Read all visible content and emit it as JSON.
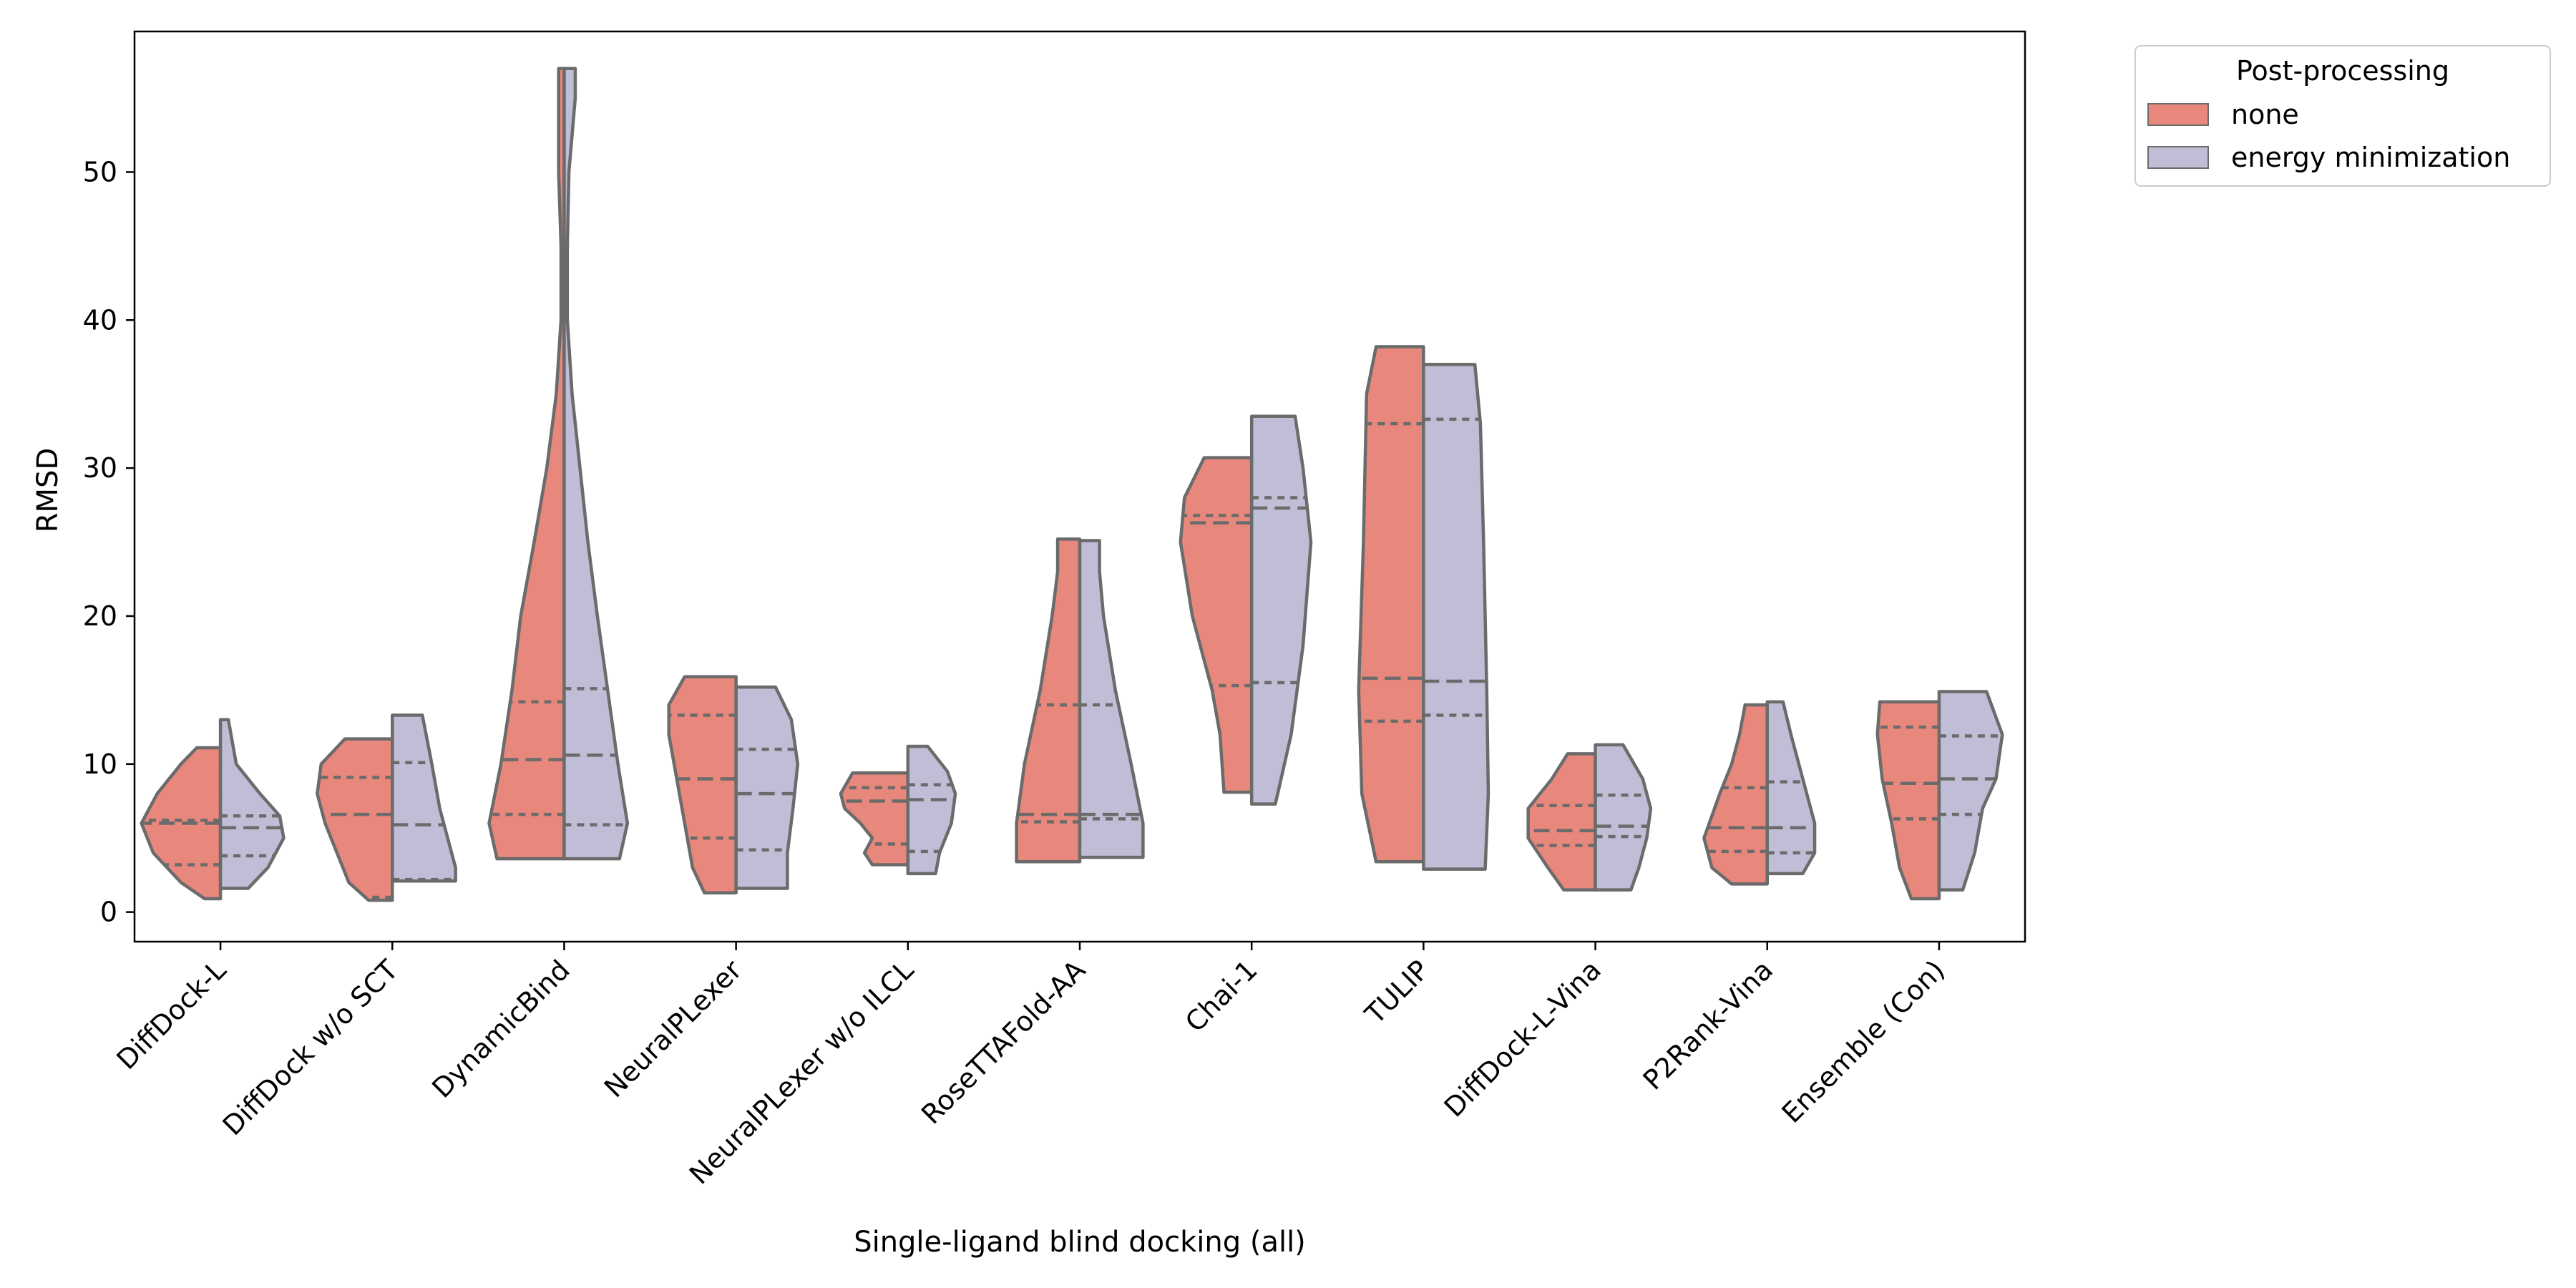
{
  "chart_data": {
    "type": "violin",
    "split": true,
    "inner": "quartile",
    "title": "",
    "xlabel": "Single-ligand blind docking (all)",
    "ylabel": "RMSD",
    "ylim": [
      -2,
      59.5
    ],
    "yticks": [
      0,
      10,
      20,
      30,
      40,
      50
    ],
    "grid": false,
    "colors": {
      "none": "#e8877c",
      "energy minimization": "#c0bdd6",
      "edge": "#6b6b6b"
    },
    "legend": {
      "title": "Post-processing",
      "placement": "outside-top-right",
      "entries": [
        "none",
        "energy minimization"
      ]
    },
    "categories": [
      "DiffDock-L",
      "DiffDock w/o SCT",
      "DynamicBind",
      "NeuralPLexer",
      "NeuralPLexer w/o ILCL",
      "RoseTTAFold-AA",
      "Chai-1",
      "TULIP",
      "DiffDock-L-Vina",
      "P2Rank-Vina",
      "Ensemble (Con)"
    ],
    "series": [
      {
        "name": "none",
        "violins": [
          {
            "min": 0.9,
            "max": 11.1,
            "q1": 3.2,
            "median": 6.0,
            "q3": 6.2,
            "profile": [
              [
                0.9,
                0.2
              ],
              [
                2,
                0.5
              ],
              [
                4,
                0.85
              ],
              [
                6,
                1.0
              ],
              [
                8,
                0.8
              ],
              [
                10,
                0.5
              ],
              [
                11.1,
                0.3
              ]
            ]
          },
          {
            "min": 0.8,
            "max": 11.7,
            "q1": 1.0,
            "median": 6.6,
            "q3": 9.1,
            "profile": [
              [
                0.8,
                0.3
              ],
              [
                2,
                0.55
              ],
              [
                4,
                0.7
              ],
              [
                6,
                0.85
              ],
              [
                8,
                0.95
              ],
              [
                10,
                0.9
              ],
              [
                11.7,
                0.6
              ]
            ]
          },
          {
            "min": 3.6,
            "max": 57.0,
            "q1": 6.6,
            "median": 10.3,
            "q3": 14.2,
            "profile": [
              [
                3.6,
                0.85
              ],
              [
                6,
                0.95
              ],
              [
                10,
                0.8
              ],
              [
                15,
                0.66
              ],
              [
                20,
                0.55
              ],
              [
                25,
                0.38
              ],
              [
                30,
                0.22
              ],
              [
                35,
                0.1
              ],
              [
                40,
                0.04
              ],
              [
                45,
                0.04
              ],
              [
                50,
                0.07
              ],
              [
                55,
                0.07
              ],
              [
                57,
                0.07
              ]
            ]
          },
          {
            "min": 1.3,
            "max": 15.9,
            "q1": 5.0,
            "median": 9.0,
            "q3": 13.3,
            "profile": [
              [
                1.3,
                0.4
              ],
              [
                3,
                0.55
              ],
              [
                6,
                0.65
              ],
              [
                9,
                0.75
              ],
              [
                12,
                0.85
              ],
              [
                14,
                0.85
              ],
              [
                15.9,
                0.65
              ]
            ]
          },
          {
            "min": 3.2,
            "max": 9.4,
            "q1": 4.6,
            "median": 7.5,
            "q3": 8.4,
            "profile": [
              [
                3.2,
                0.45
              ],
              [
                4,
                0.55
              ],
              [
                5,
                0.45
              ],
              [
                6,
                0.6
              ],
              [
                7,
                0.8
              ],
              [
                8,
                0.85
              ],
              [
                9.4,
                0.7
              ]
            ]
          },
          {
            "min": 3.4,
            "max": 25.2,
            "q1": 6.1,
            "median": 6.6,
            "q3": 14.0,
            "profile": [
              [
                3.4,
                0.8
              ],
              [
                6,
                0.8
              ],
              [
                10,
                0.7
              ],
              [
                15,
                0.5
              ],
              [
                20,
                0.35
              ],
              [
                23,
                0.28
              ],
              [
                25.2,
                0.28
              ]
            ]
          },
          {
            "min": 8.1,
            "max": 30.7,
            "q1": 15.3,
            "median": 26.3,
            "q3": 26.8,
            "profile": [
              [
                8.1,
                0.35
              ],
              [
                12,
                0.4
              ],
              [
                15,
                0.5
              ],
              [
                20,
                0.75
              ],
              [
                25,
                0.9
              ],
              [
                28,
                0.85
              ],
              [
                30.7,
                0.6
              ]
            ]
          },
          {
            "min": 3.4,
            "max": 38.2,
            "q1": 12.9,
            "median": 15.8,
            "q3": 33.0,
            "profile": [
              [
                3.4,
                0.6
              ],
              [
                8,
                0.78
              ],
              [
                15,
                0.82
              ],
              [
                25,
                0.76
              ],
              [
                35,
                0.72
              ],
              [
                38.2,
                0.6
              ]
            ]
          },
          {
            "min": 1.5,
            "max": 10.7,
            "q1": 4.5,
            "median": 5.5,
            "q3": 7.2,
            "profile": [
              [
                1.5,
                0.4
              ],
              [
                3,
                0.6
              ],
              [
                5,
                0.85
              ],
              [
                7,
                0.85
              ],
              [
                9,
                0.55
              ],
              [
                10.7,
                0.35
              ]
            ]
          },
          {
            "min": 1.9,
            "max": 14.0,
            "q1": 4.1,
            "median": 5.7,
            "q3": 8.4,
            "profile": [
              [
                1.9,
                0.45
              ],
              [
                3,
                0.7
              ],
              [
                5,
                0.8
              ],
              [
                8,
                0.6
              ],
              [
                10,
                0.45
              ],
              [
                12,
                0.35
              ],
              [
                14,
                0.28
              ]
            ]
          },
          {
            "min": 0.9,
            "max": 14.2,
            "q1": 6.3,
            "median": 8.7,
            "q3": 12.5,
            "profile": [
              [
                0.9,
                0.35
              ],
              [
                3,
                0.5
              ],
              [
                6,
                0.6
              ],
              [
                9,
                0.72
              ],
              [
                12,
                0.78
              ],
              [
                14.2,
                0.75
              ]
            ]
          }
        ]
      },
      {
        "name": "energy minimization",
        "violins": [
          {
            "min": 1.6,
            "max": 13.0,
            "q1": 3.8,
            "median": 5.7,
            "q3": 6.5,
            "profile": [
              [
                1.6,
                0.35
              ],
              [
                3,
                0.6
              ],
              [
                5,
                0.8
              ],
              [
                6.5,
                0.75
              ],
              [
                8,
                0.5
              ],
              [
                10,
                0.2
              ],
              [
                13,
                0.1
              ]
            ]
          },
          {
            "min": 2.1,
            "max": 13.3,
            "q1": 2.2,
            "median": 5.9,
            "q3": 10.1,
            "profile": [
              [
                2.1,
                0.8
              ],
              [
                3,
                0.8
              ],
              [
                5,
                0.7
              ],
              [
                7,
                0.6
              ],
              [
                10,
                0.5
              ],
              [
                13.3,
                0.38
              ]
            ]
          },
          {
            "min": 3.6,
            "max": 57.0,
            "q1": 5.9,
            "median": 10.6,
            "q3": 15.1,
            "profile": [
              [
                3.6,
                0.7
              ],
              [
                6,
                0.8
              ],
              [
                10,
                0.68
              ],
              [
                15,
                0.55
              ],
              [
                20,
                0.42
              ],
              [
                25,
                0.3
              ],
              [
                30,
                0.2
              ],
              [
                35,
                0.1
              ],
              [
                40,
                0.04
              ],
              [
                45,
                0.04
              ],
              [
                50,
                0.06
              ],
              [
                55,
                0.14
              ],
              [
                57,
                0.14
              ]
            ]
          },
          {
            "min": 1.6,
            "max": 15.2,
            "q1": 4.2,
            "median": 8.0,
            "q3": 11.0,
            "profile": [
              [
                1.6,
                0.65
              ],
              [
                4,
                0.65
              ],
              [
                7,
                0.72
              ],
              [
                10,
                0.78
              ],
              [
                13,
                0.7
              ],
              [
                15.2,
                0.5
              ]
            ]
          },
          {
            "min": 2.6,
            "max": 11.2,
            "q1": 4.1,
            "median": 7.6,
            "q3": 8.6,
            "profile": [
              [
                2.6,
                0.35
              ],
              [
                4,
                0.4
              ],
              [
                6,
                0.55
              ],
              [
                8,
                0.6
              ],
              [
                9.5,
                0.5
              ],
              [
                11.2,
                0.25
              ]
            ]
          },
          {
            "min": 3.7,
            "max": 25.1,
            "q1": 6.3,
            "median": 6.6,
            "q3": 14.0,
            "profile": [
              [
                3.7,
                0.8
              ],
              [
                6,
                0.8
              ],
              [
                10,
                0.65
              ],
              [
                15,
                0.45
              ],
              [
                20,
                0.3
              ],
              [
                23,
                0.25
              ],
              [
                25.1,
                0.25
              ]
            ]
          },
          {
            "min": 7.3,
            "max": 33.5,
            "q1": 15.5,
            "median": 27.3,
            "q3": 28.0,
            "profile": [
              [
                7.3,
                0.3
              ],
              [
                12,
                0.5
              ],
              [
                18,
                0.65
              ],
              [
                25,
                0.75
              ],
              [
                30,
                0.65
              ],
              [
                33.5,
                0.55
              ]
            ]
          },
          {
            "min": 2.9,
            "max": 37.0,
            "q1": 13.3,
            "median": 15.6,
            "q3": 33.3,
            "profile": [
              [
                2.9,
                0.78
              ],
              [
                8,
                0.82
              ],
              [
                15,
                0.8
              ],
              [
                25,
                0.76
              ],
              [
                33,
                0.72
              ],
              [
                37,
                0.65
              ]
            ]
          },
          {
            "min": 1.5,
            "max": 11.3,
            "q1": 5.1,
            "median": 5.8,
            "q3": 7.9,
            "profile": [
              [
                1.5,
                0.45
              ],
              [
                3,
                0.55
              ],
              [
                5,
                0.65
              ],
              [
                7,
                0.7
              ],
              [
                9,
                0.6
              ],
              [
                11.3,
                0.35
              ]
            ]
          },
          {
            "min": 2.6,
            "max": 14.2,
            "q1": 4.0,
            "median": 5.7,
            "q3": 8.8,
            "profile": [
              [
                2.6,
                0.45
              ],
              [
                4,
                0.6
              ],
              [
                6,
                0.6
              ],
              [
                8,
                0.5
              ],
              [
                10,
                0.4
              ],
              [
                12,
                0.3
              ],
              [
                14.2,
                0.2
              ]
            ]
          },
          {
            "min": 1.5,
            "max": 14.9,
            "q1": 6.6,
            "median": 9.0,
            "q3": 11.9,
            "profile": [
              [
                1.5,
                0.3
              ],
              [
                4,
                0.45
              ],
              [
                7,
                0.55
              ],
              [
                9,
                0.72
              ],
              [
                12,
                0.8
              ],
              [
                14.9,
                0.6
              ]
            ]
          }
        ]
      }
    ]
  }
}
